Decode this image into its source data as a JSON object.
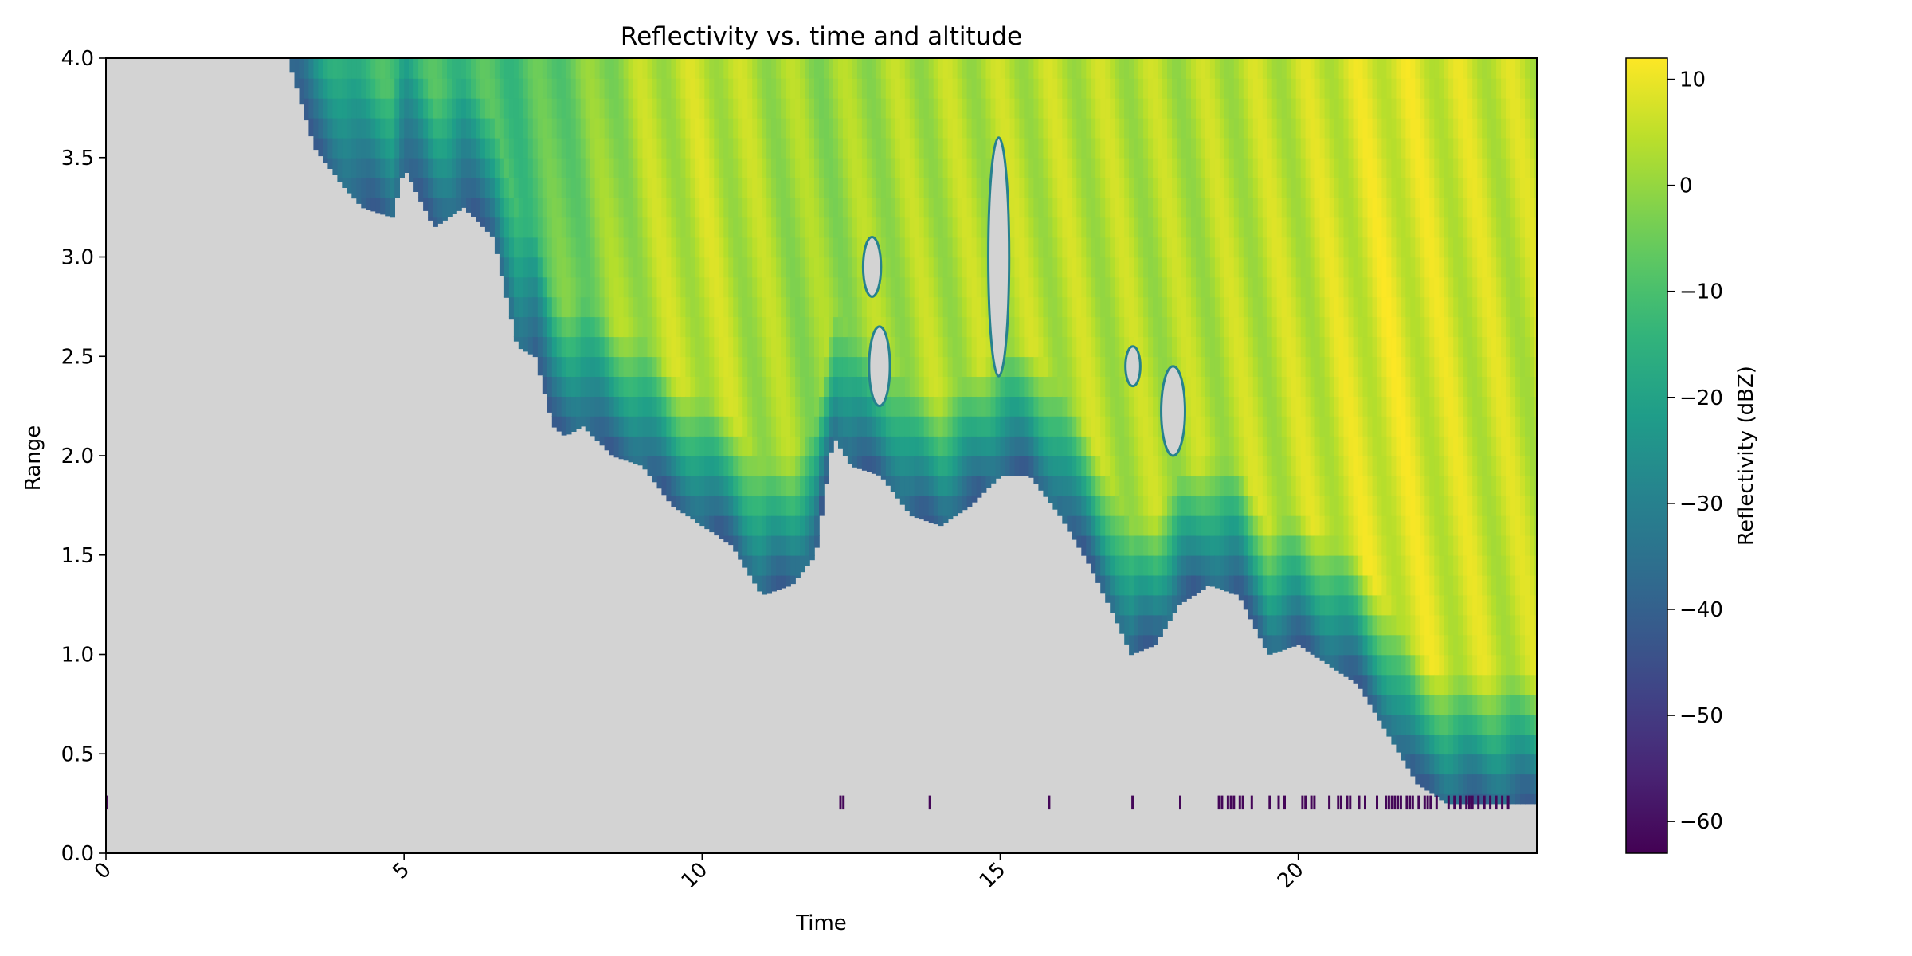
{
  "chart_data": {
    "type": "heatmap",
    "title": "Reflectivity vs. time and altitude",
    "xlabel": "Time",
    "ylabel": "Range",
    "xlim": [
      0,
      24
    ],
    "ylim": [
      0,
      4.0
    ],
    "xticks": [
      0,
      5,
      10,
      15,
      20
    ],
    "xtick_labels": [
      "0",
      "5",
      "10",
      "15",
      "20"
    ],
    "yticks": [
      0.0,
      0.5,
      1.0,
      1.5,
      2.0,
      2.5,
      3.0,
      3.5,
      4.0
    ],
    "ytick_labels": [
      "0.0",
      "0.5",
      "1.0",
      "1.5",
      "2.0",
      "2.5",
      "3.0",
      "3.5",
      "4.0"
    ],
    "xtick_rotation_deg": 45,
    "grid": false,
    "no_data_color": "#d3d3d3",
    "colormap": "viridis",
    "colorbar": {
      "label": "Reflectivity (dBZ)",
      "range": [
        -63,
        12
      ],
      "ticks": [
        10,
        0,
        -10,
        -20,
        -30,
        -40,
        -50,
        -60
      ],
      "tick_labels": [
        "10",
        "0",
        "−10",
        "−20",
        "−30",
        "−40",
        "−50",
        "−60"
      ]
    },
    "cloud_base_profile": {
      "time": [
        3.05,
        3.5,
        4.0,
        4.3,
        4.8,
        5.0,
        5.5,
        6.0,
        6.5,
        6.9,
        7.2,
        7.5,
        7.7,
        8.0,
        8.5,
        9.0,
        9.5,
        10.0,
        10.5,
        11.0,
        11.5,
        11.9,
        12.2,
        12.5,
        13.0,
        13.5,
        14.0,
        14.5,
        15.0,
        15.5,
        16.0,
        16.5,
        16.9,
        17.2,
        17.6,
        18.0,
        18.5,
        19.0,
        19.5,
        20.0,
        20.5,
        21.0,
        21.5,
        22.0,
        22.5,
        23.0,
        23.5,
        24.0
      ],
      "range": [
        4.0,
        3.55,
        3.35,
        3.25,
        3.2,
        3.45,
        3.15,
        3.25,
        3.1,
        2.55,
        2.5,
        2.15,
        2.1,
        2.15,
        2.0,
        1.95,
        1.75,
        1.65,
        1.55,
        1.3,
        1.35,
        1.5,
        2.1,
        1.95,
        1.9,
        1.7,
        1.65,
        1.75,
        1.9,
        1.9,
        1.7,
        1.45,
        1.2,
        1.0,
        1.05,
        1.25,
        1.35,
        1.3,
        1.0,
        1.05,
        0.95,
        0.85,
        0.6,
        0.35,
        0.25,
        0.25,
        0.25,
        0.25
      ]
    },
    "low_level_echoes": {
      "range_band": [
        0.22,
        0.29
      ],
      "times": [
        0.0,
        12.3,
        12.35,
        13.8,
        15.8,
        17.2,
        18.0,
        18.65,
        18.7,
        18.8,
        18.85,
        18.9,
        19.0,
        19.05,
        19.2,
        19.5,
        19.65,
        19.75,
        20.05,
        20.1,
        20.2,
        20.25,
        20.5,
        20.65,
        20.7,
        20.8,
        20.85,
        21.0,
        21.1,
        21.3,
        21.45,
        21.5,
        21.55,
        21.6,
        21.65,
        21.7,
        21.8,
        21.85,
        21.9,
        22.0,
        22.1,
        22.15,
        22.2,
        22.3,
        22.5,
        22.6,
        22.7,
        22.8,
        22.85,
        22.9,
        23.0,
        23.1,
        23.2,
        23.3,
        23.4,
        23.5
      ]
    },
    "clear_regions": [
      {
        "time": [
          12.8,
          13.15
        ],
        "range": [
          2.25,
          2.65
        ]
      },
      {
        "time": [
          12.7,
          13.0
        ],
        "range": [
          2.8,
          3.1
        ]
      },
      {
        "time": [
          14.8,
          15.15
        ],
        "range": [
          2.4,
          3.6
        ]
      },
      {
        "time": [
          17.1,
          17.35
        ],
        "range": [
          2.35,
          2.55
        ]
      },
      {
        "time": [
          17.7,
          18.1
        ],
        "range": [
          2.0,
          2.45
        ]
      }
    ],
    "value_profile": {
      "time": [
        3,
        5,
        7,
        9,
        10,
        12,
        13,
        14,
        16,
        18,
        20,
        21.5,
        23,
        24
      ],
      "dbz": [
        -15,
        -12,
        -10,
        3,
        5,
        0,
        2,
        3,
        4,
        3,
        5,
        8,
        6,
        5
      ]
    }
  }
}
